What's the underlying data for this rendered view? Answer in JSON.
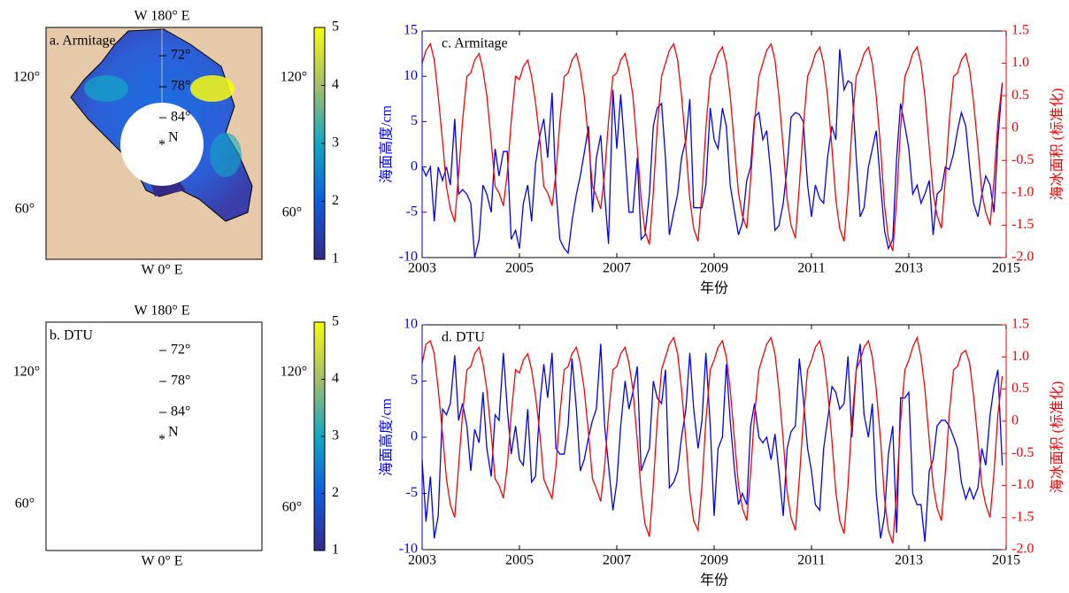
{
  "chart_data": [
    {
      "type": "map",
      "title": "a. Armitage",
      "top_label": "W 180° E",
      "bottom_label": "W 0° E",
      "lon_labels": [
        "120°",
        "120°",
        "60°",
        "60°"
      ],
      "lat_labels": [
        "72°",
        "78°",
        "84°"
      ],
      "pole_label": "N",
      "pole_marker": "*",
      "clim": [
        1,
        5
      ],
      "cticks": [
        1,
        2,
        3,
        4,
        5
      ],
      "colormap": [
        "#352a87",
        "#0f5cdd",
        "#12a8c4",
        "#a5be6a",
        "#f9fb0e"
      ]
    },
    {
      "type": "line",
      "title": "c. Armitage",
      "xlabel": "年份",
      "ylabel": "海面高度/cm",
      "y2label": "海冰面积 (标准化)",
      "xlim": [
        2003,
        2015
      ],
      "xticks": [
        2003,
        2005,
        2007,
        2009,
        2011,
        2013,
        2015
      ],
      "ylim": [
        -10,
        15
      ],
      "yticks": [
        -10,
        -5,
        0,
        5,
        10,
        15
      ],
      "y2lim": [
        -2,
        1.5
      ],
      "y2ticks": [
        {
          "value": -2,
          "label": "-2.0"
        },
        -1.5,
        {
          "value": -1,
          "label": "-1.0"
        },
        -0.5,
        0,
        0.5,
        {
          "value": 1,
          "label": "1.0"
        },
        1.5
      ],
      "x": [
        2003,
        2003.08,
        2003.17,
        2003.25,
        2003.33,
        2003.42,
        2003.5,
        2003.58,
        2003.67,
        2003.75,
        2003.83,
        2003.92,
        2004,
        2004.08,
        2004.17,
        2004.25,
        2004.33,
        2004.42,
        2004.5,
        2004.58,
        2004.67,
        2004.75,
        2004.83,
        2004.92,
        2005,
        2005.08,
        2005.17,
        2005.25,
        2005.33,
        2005.42,
        2005.5,
        2005.58,
        2005.67,
        2005.75,
        2005.83,
        2005.92,
        2006,
        2006.08,
        2006.17,
        2006.25,
        2006.33,
        2006.42,
        2006.5,
        2006.58,
        2006.67,
        2006.75,
        2006.83,
        2006.92,
        2007,
        2007.08,
        2007.17,
        2007.25,
        2007.33,
        2007.42,
        2007.5,
        2007.58,
        2007.67,
        2007.75,
        2007.83,
        2007.92,
        2008,
        2008.08,
        2008.17,
        2008.25,
        2008.33,
        2008.42,
        2008.5,
        2008.58,
        2008.67,
        2008.75,
        2008.83,
        2008.92,
        2009,
        2009.08,
        2009.17,
        2009.25,
        2009.33,
        2009.42,
        2009.5,
        2009.58,
        2009.67,
        2009.75,
        2009.83,
        2009.92,
        2010,
        2010.08,
        2010.17,
        2010.25,
        2010.33,
        2010.42,
        2010.5,
        2010.58,
        2010.67,
        2010.75,
        2010.83,
        2010.92,
        2011,
        2011.08,
        2011.17,
        2011.25,
        2011.33,
        2011.42,
        2011.5,
        2011.58,
        2011.67,
        2011.75,
        2011.83,
        2011.92,
        2012,
        2012.08,
        2012.17,
        2012.25,
        2012.33,
        2012.42,
        2012.5,
        2012.58,
        2012.67,
        2012.75,
        2012.83,
        2012.92,
        2013,
        2013.08,
        2013.17,
        2013.25,
        2013.33,
        2013.42,
        2013.5,
        2013.58,
        2013.67,
        2013.75,
        2013.83,
        2013.92,
        2014,
        2014.08,
        2014.17,
        2014.25,
        2014.33,
        2014.42,
        2014.5,
        2014.58,
        2014.67,
        2014.75,
        2014.83,
        2014.92
      ],
      "series": [
        {
          "color": "#0000ff",
          "values": [
            0,
            -1,
            0,
            -6,
            0,
            -1.5,
            0,
            -2,
            5.3,
            -3,
            -2.5,
            -3,
            -4,
            -10,
            -8,
            -2,
            -3,
            -5,
            2,
            -1,
            1.7,
            1.7,
            -8,
            -7,
            -9,
            -4,
            -2,
            -6,
            0.3,
            3.5,
            5.3,
            1,
            8.2,
            -2.5,
            -8,
            -9,
            -9.5,
            -6,
            -3,
            -1,
            1.5,
            4.5,
            -5,
            1,
            3.5,
            -3,
            -8.5,
            8.5,
            2,
            8,
            1.5,
            -5,
            -5,
            1,
            -8,
            -7.5,
            -3,
            4.5,
            6.5,
            7,
            1,
            -7.5,
            -5,
            -3,
            1,
            3,
            7.5,
            -4.5,
            -4.5,
            -4.5,
            -2,
            6.5,
            3,
            2,
            6.5,
            4.5,
            -2,
            -5,
            -7.5,
            -6.2,
            -1.5,
            0,
            5.5,
            6,
            3,
            4,
            -1,
            -7,
            -6.5,
            -4,
            0,
            5.5,
            6,
            5.8,
            5,
            -2,
            -5.5,
            -2,
            -3.5,
            -4,
            1,
            4.5,
            3,
            13,
            8.5,
            9.5,
            9.2,
            1,
            -5.5,
            -4.5,
            0,
            2,
            4,
            -2,
            -7,
            -9,
            -8,
            1,
            7,
            4.5,
            2,
            -3,
            -2,
            -4,
            -3,
            -1.5,
            -7.5,
            -3,
            -2.5,
            0,
            -0.3,
            1.5,
            4,
            6,
            4.5,
            0,
            -4,
            -5.5,
            -3,
            -1,
            -2,
            -5,
            3,
            9.2
          ]
        },
        {
          "color": "#ff0000",
          "axis": "y2",
          "values": [
            1.0,
            1.2,
            1.3,
            1.05,
            0.5,
            -0.2,
            -0.9,
            -1.25,
            -1.45,
            -0.7,
            0.1,
            0.8,
            0.85,
            1.05,
            1.15,
            0.9,
            0.5,
            -0.2,
            -0.9,
            -1.0,
            -1.2,
            -0.7,
            0.1,
            0.8,
            0.75,
            0.95,
            1.05,
            0.8,
            0.4,
            -0.2,
            -0.9,
            -1.0,
            -1.2,
            -0.7,
            0.1,
            0.8,
            0.85,
            1.05,
            1.15,
            0.9,
            0.5,
            -0.2,
            -0.9,
            -1.05,
            -1.25,
            -0.7,
            0.1,
            0.8,
            0.85,
            1.05,
            1.15,
            0.9,
            0.5,
            -0.3,
            -1.1,
            -1.6,
            -1.8,
            -1.0,
            0.0,
            0.8,
            1.0,
            1.2,
            1.3,
            1.05,
            0.5,
            -0.3,
            -1.1,
            -1.55,
            -1.75,
            -1.0,
            0.0,
            0.8,
            0.95,
            1.15,
            1.25,
            1.0,
            0.5,
            -0.3,
            -1.0,
            -1.35,
            -1.55,
            -0.8,
            0.1,
            0.8,
            1.0,
            1.2,
            1.3,
            1.05,
            0.5,
            -0.3,
            -1.1,
            -1.5,
            -1.7,
            -0.9,
            0.0,
            0.8,
            0.95,
            1.15,
            1.25,
            1.0,
            0.5,
            -0.3,
            -1.1,
            -1.55,
            -1.75,
            -1.0,
            0.0,
            0.8,
            0.95,
            1.15,
            1.25,
            1.0,
            0.5,
            -0.3,
            -1.2,
            -1.7,
            -1.9,
            -1.1,
            0.0,
            0.8,
            0.95,
            1.15,
            1.25,
            1.0,
            0.5,
            -0.3,
            -1.0,
            -1.35,
            -1.55,
            -0.8,
            0.1,
            0.8,
            0.85,
            1.05,
            1.15,
            0.9,
            0.4,
            -0.3,
            -1.0,
            -1.3,
            -1.5,
            -0.8,
            0.1,
            0.7
          ]
        }
      ]
    },
    {
      "type": "map",
      "title": "b. DTU",
      "top_label": "W 180° E",
      "bottom_label": "W 0° E",
      "lon_labels": [
        "120°",
        "120°",
        "60°",
        "60°"
      ],
      "lat_labels": [
        "72°",
        "78°",
        "84°"
      ],
      "pole_label": "N",
      "pole_marker": "*",
      "clim": [
        1,
        5
      ],
      "cticks": [
        1,
        2,
        3,
        4,
        5
      ],
      "colormap": [
        "#352a87",
        "#0f5cdd",
        "#12a8c4",
        "#a5be6a",
        "#f9fb0e"
      ]
    },
    {
      "type": "line",
      "title": "d. DTU",
      "xlabel": "年份",
      "ylabel": "海面高度/cm",
      "y2label": "海冰面积 (标准化)",
      "xlim": [
        2003,
        2015
      ],
      "xticks": [
        2003,
        2005,
        2007,
        2009,
        2011,
        2013,
        2015
      ],
      "ylim": [
        -10,
        10
      ],
      "yticks": [
        -10,
        -5,
        0,
        5,
        10
      ],
      "y2lim": [
        -2,
        1.5
      ],
      "y2ticks": [
        {
          "value": -2,
          "label": "-2.0"
        },
        -1.5,
        {
          "value": -1,
          "label": "-1.0"
        },
        -0.5,
        0,
        0.5,
        {
          "value": 1,
          "label": "1.0"
        },
        1.5
      ],
      "x": [
        2003,
        2003.08,
        2003.17,
        2003.25,
        2003.33,
        2003.42,
        2003.5,
        2003.58,
        2003.67,
        2003.75,
        2003.83,
        2003.92,
        2004,
        2004.08,
        2004.17,
        2004.25,
        2004.33,
        2004.42,
        2004.5,
        2004.58,
        2004.67,
        2004.75,
        2004.83,
        2004.92,
        2005,
        2005.08,
        2005.17,
        2005.25,
        2005.33,
        2005.42,
        2005.5,
        2005.58,
        2005.67,
        2005.75,
        2005.83,
        2005.92,
        2006,
        2006.08,
        2006.17,
        2006.25,
        2006.33,
        2006.42,
        2006.5,
        2006.58,
        2006.67,
        2006.75,
        2006.83,
        2006.92,
        2007,
        2007.08,
        2007.17,
        2007.25,
        2007.33,
        2007.42,
        2007.5,
        2007.58,
        2007.67,
        2007.75,
        2007.83,
        2007.92,
        2008,
        2008.08,
        2008.17,
        2008.25,
        2008.33,
        2008.42,
        2008.5,
        2008.58,
        2008.67,
        2008.75,
        2008.83,
        2008.92,
        2009,
        2009.08,
        2009.17,
        2009.25,
        2009.33,
        2009.42,
        2009.5,
        2009.58,
        2009.67,
        2009.75,
        2009.83,
        2009.92,
        2010,
        2010.08,
        2010.17,
        2010.25,
        2010.33,
        2010.42,
        2010.5,
        2010.58,
        2010.67,
        2010.75,
        2010.83,
        2010.92,
        2011,
        2011.08,
        2011.17,
        2011.25,
        2011.33,
        2011.42,
        2011.5,
        2011.58,
        2011.67,
        2011.75,
        2011.83,
        2011.92,
        2012,
        2012.08,
        2012.17,
        2012.25,
        2012.33,
        2012.42,
        2012.5,
        2012.58,
        2012.67,
        2012.75,
        2012.83,
        2012.92,
        2013,
        2013.08,
        2013.17,
        2013.25,
        2013.33,
        2013.42,
        2013.5,
        2013.58,
        2013.67,
        2013.75,
        2013.83,
        2013.92,
        2014,
        2014.08,
        2014.17,
        2014.25,
        2014.33,
        2014.42,
        2014.5,
        2014.58,
        2014.67,
        2014.75,
        2014.83,
        2014.92
      ],
      "series": [
        {
          "color": "#0000ff",
          "values": [
            -2,
            -7.5,
            -3.5,
            -9,
            -7,
            2.5,
            2,
            3,
            7.3,
            1.5,
            3,
            1,
            -3,
            0.7,
            -0.5,
            4,
            -1,
            -3.5,
            2,
            1.5,
            7.5,
            2.5,
            -1.5,
            1,
            -2,
            -2.5,
            2.5,
            -4,
            -3.5,
            3,
            6.5,
            3.5,
            7.5,
            -1,
            -1.5,
            -1.5,
            1,
            7,
            2.5,
            -3,
            -2,
            0,
            1.5,
            2.5,
            8.3,
            1,
            -2.5,
            -6.5,
            -4,
            1,
            5,
            2.5,
            4,
            6.3,
            -3,
            -2,
            -1,
            5,
            3.5,
            3,
            6,
            -4.5,
            -4,
            -3,
            0,
            2.5,
            7.5,
            2.5,
            -1,
            1.5,
            7.5,
            1,
            -7,
            -1,
            0,
            6.5,
            1.5,
            -3,
            -6,
            -5,
            -6,
            1,
            3,
            0,
            -0.5,
            0,
            -2,
            0.3,
            -3,
            -7,
            -1,
            0.5,
            1,
            7,
            3.5,
            -1,
            -3,
            -6,
            -6.5,
            -1,
            1.5,
            4.5,
            4,
            2.5,
            3,
            7.2,
            0,
            6,
            8.3,
            2,
            0,
            3,
            -5,
            -9,
            -7,
            -1.5,
            1,
            -8.5,
            3.5,
            3.5,
            4,
            -5,
            -6,
            -6,
            -9.3,
            -3,
            -2,
            1,
            1.5,
            1.5,
            1,
            0,
            -1,
            -4,
            -5.5,
            -4.5,
            -5.5,
            -4.5,
            -1,
            -2.5,
            2,
            4.5,
            6,
            -2.5
          ]
        },
        {
          "color": "#ff0000",
          "axis": "y2",
          "values": [
            0.9,
            1.2,
            1.25,
            1.05,
            0.5,
            -0.2,
            -0.9,
            -1.3,
            -1.5,
            -0.7,
            0.1,
            0.8,
            0.85,
            1.05,
            1.15,
            0.9,
            0.5,
            -0.2,
            -0.9,
            -1.0,
            -1.2,
            -0.7,
            0.1,
            0.8,
            0.75,
            0.95,
            1.05,
            0.8,
            0.4,
            -0.2,
            -0.9,
            -1.05,
            -1.2,
            -0.7,
            0.1,
            0.8,
            0.85,
            1.05,
            1.15,
            0.9,
            0.5,
            -0.2,
            -0.9,
            -1.05,
            -1.25,
            -0.7,
            0.1,
            0.8,
            0.85,
            1.05,
            1.15,
            0.9,
            0.5,
            -0.3,
            -1.1,
            -1.6,
            -1.8,
            -1.0,
            0.0,
            0.8,
            1.0,
            1.2,
            1.3,
            1.05,
            0.5,
            -0.3,
            -1.1,
            -1.55,
            -1.7,
            -1.0,
            0.0,
            0.8,
            0.95,
            1.15,
            1.25,
            1.0,
            0.5,
            -0.3,
            -1.0,
            -1.35,
            -1.55,
            -0.8,
            0.1,
            0.8,
            1.0,
            1.2,
            1.3,
            1.05,
            0.5,
            -0.3,
            -1.1,
            -1.5,
            -1.7,
            -0.9,
            0.0,
            0.8,
            0.95,
            1.15,
            1.25,
            1.0,
            0.5,
            -0.3,
            -1.1,
            -1.55,
            -1.75,
            -1.0,
            0.0,
            0.8,
            0.95,
            1.15,
            1.25,
            1.0,
            0.5,
            -0.3,
            -1.2,
            -1.7,
            -1.9,
            -1.1,
            0.0,
            0.8,
            0.95,
            1.15,
            1.3,
            1.0,
            0.5,
            -0.3,
            -1.0,
            -1.35,
            -1.55,
            -0.8,
            0.1,
            0.8,
            0.85,
            1.05,
            1.1,
            0.9,
            0.4,
            -0.3,
            -1.0,
            -1.3,
            -1.5,
            -0.8,
            0.1,
            0.7
          ]
        }
      ]
    }
  ]
}
